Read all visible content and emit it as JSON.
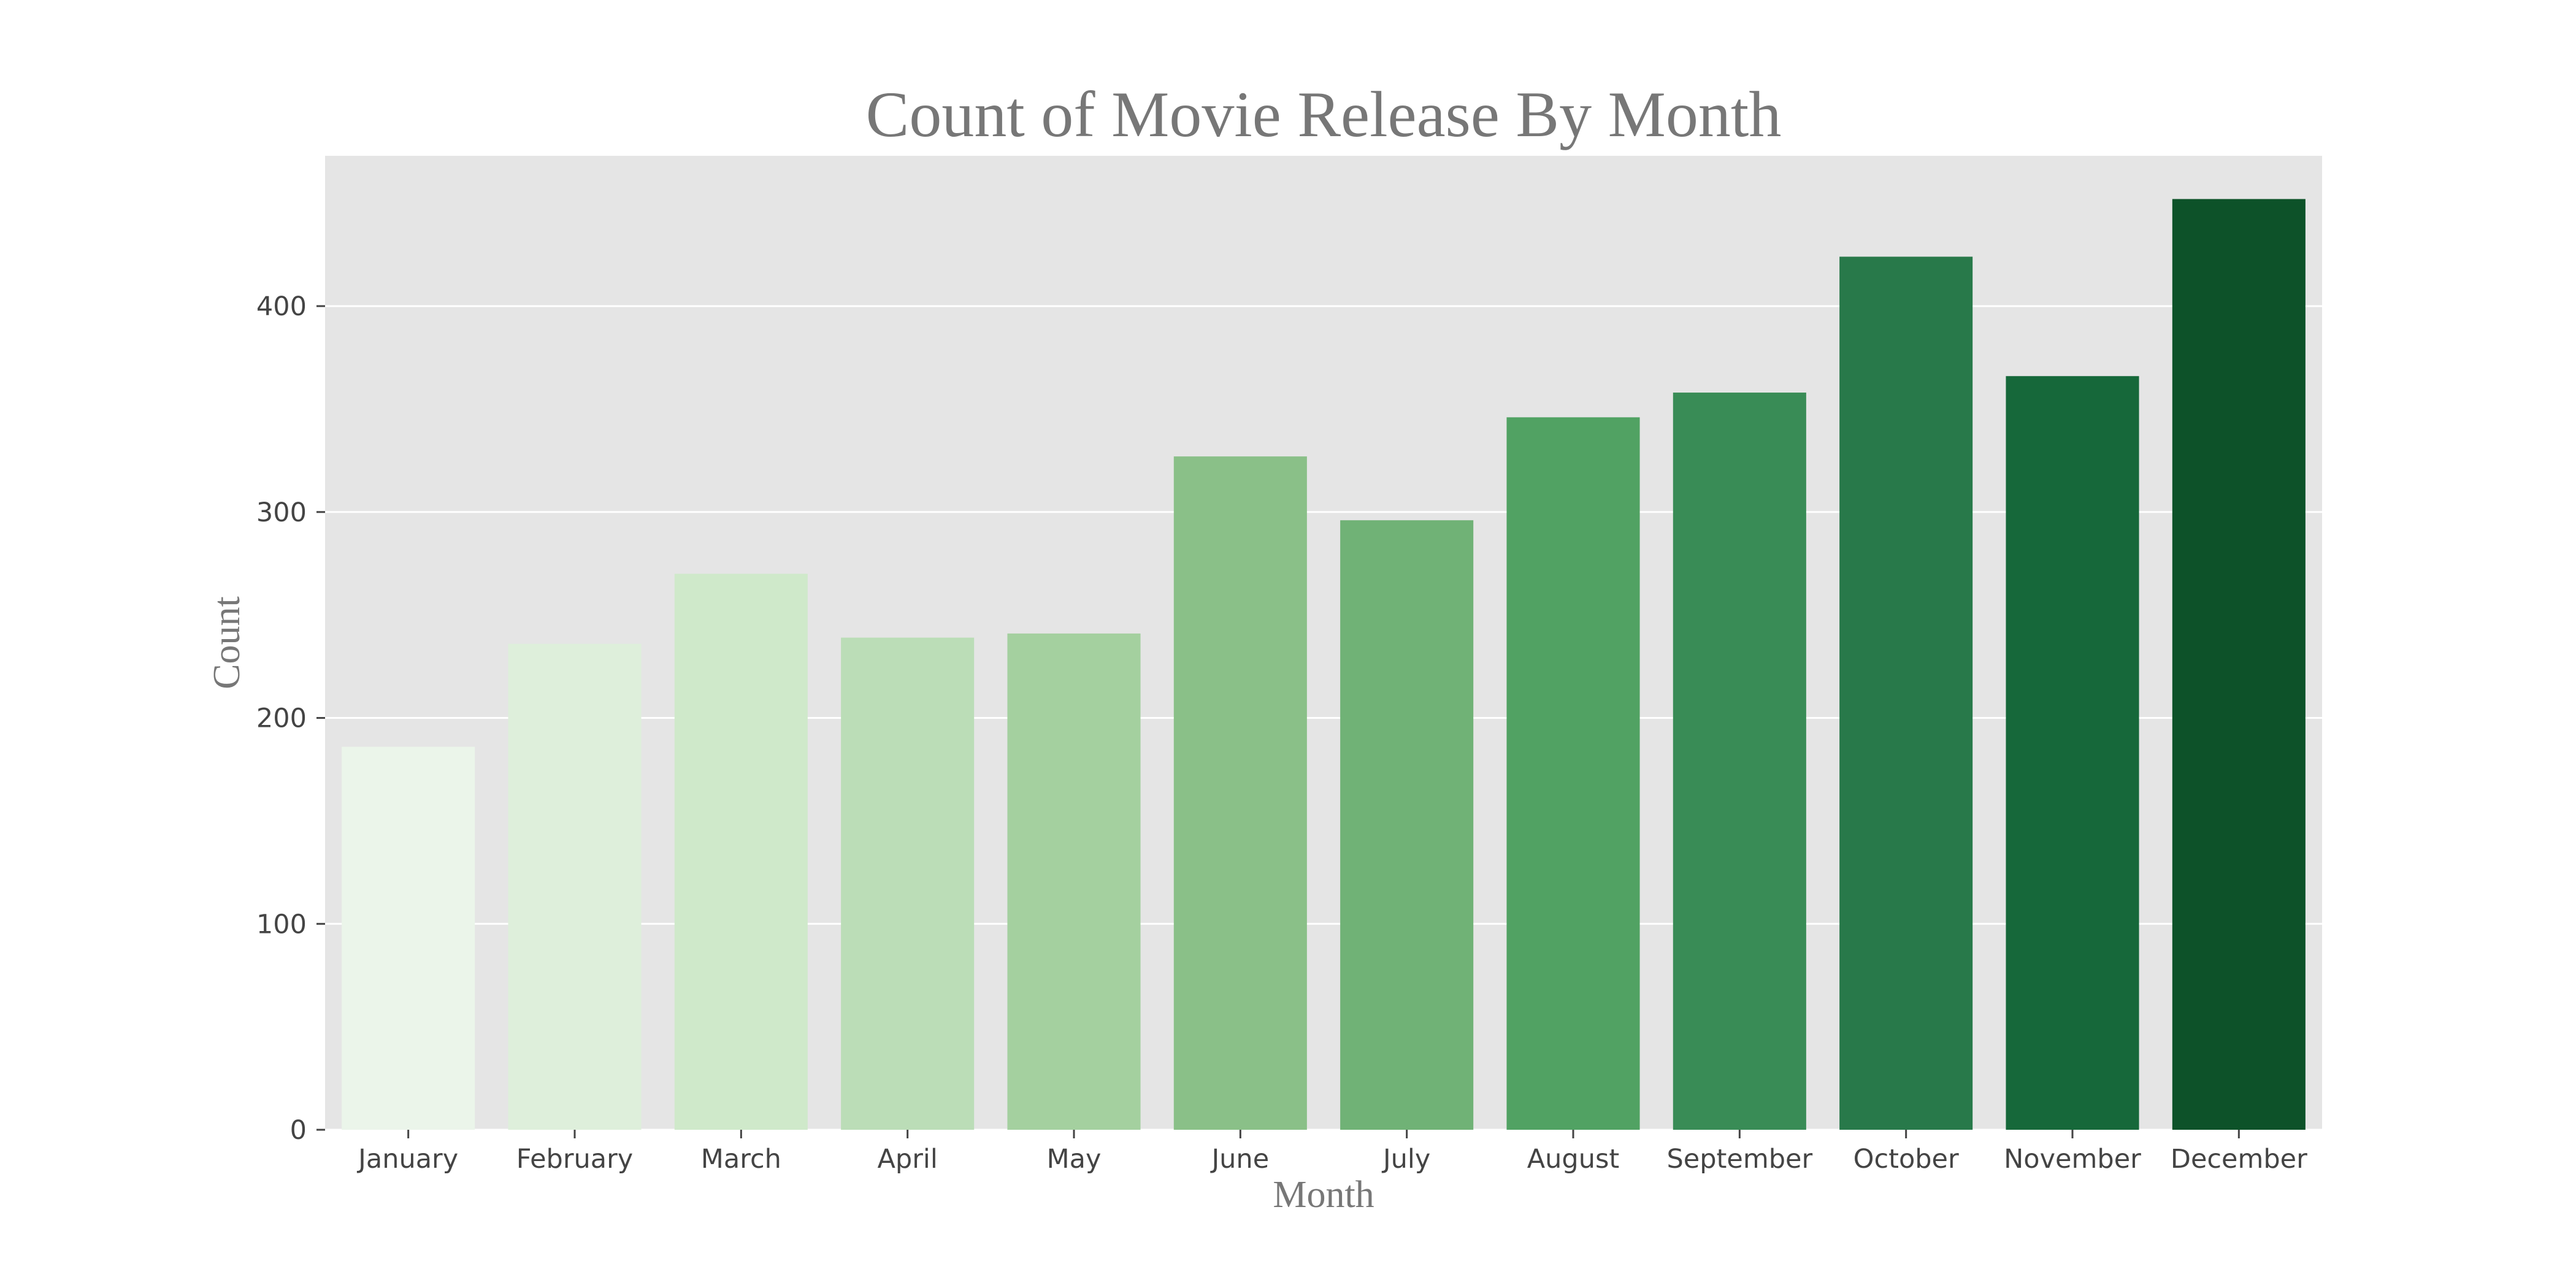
{
  "chart_data": {
    "type": "bar",
    "title": "Count of Movie Release By Month",
    "xlabel": "Month",
    "ylabel": "Count",
    "ylim": [
      0,
      473
    ],
    "yticks": [
      0,
      100,
      200,
      300,
      400
    ],
    "grid": true,
    "legend": "none",
    "categories": [
      "January",
      "February",
      "March",
      "April",
      "May",
      "June",
      "July",
      "August",
      "September",
      "October",
      "November",
      "December"
    ],
    "values": [
      186,
      236,
      270,
      239,
      241,
      327,
      296,
      346,
      358,
      424,
      366,
      452
    ],
    "colors": [
      "#ebf5ea",
      "#deefdb",
      "#cfe9ca",
      "#bbddb7",
      "#a4d09f",
      "#8ac088",
      "#70b276",
      "#51a263",
      "#398c56",
      "#28794a",
      "#16683a",
      "#0d5229"
    ],
    "background_color": "#e5e5e5",
    "grid_color": "#ffffff"
  }
}
